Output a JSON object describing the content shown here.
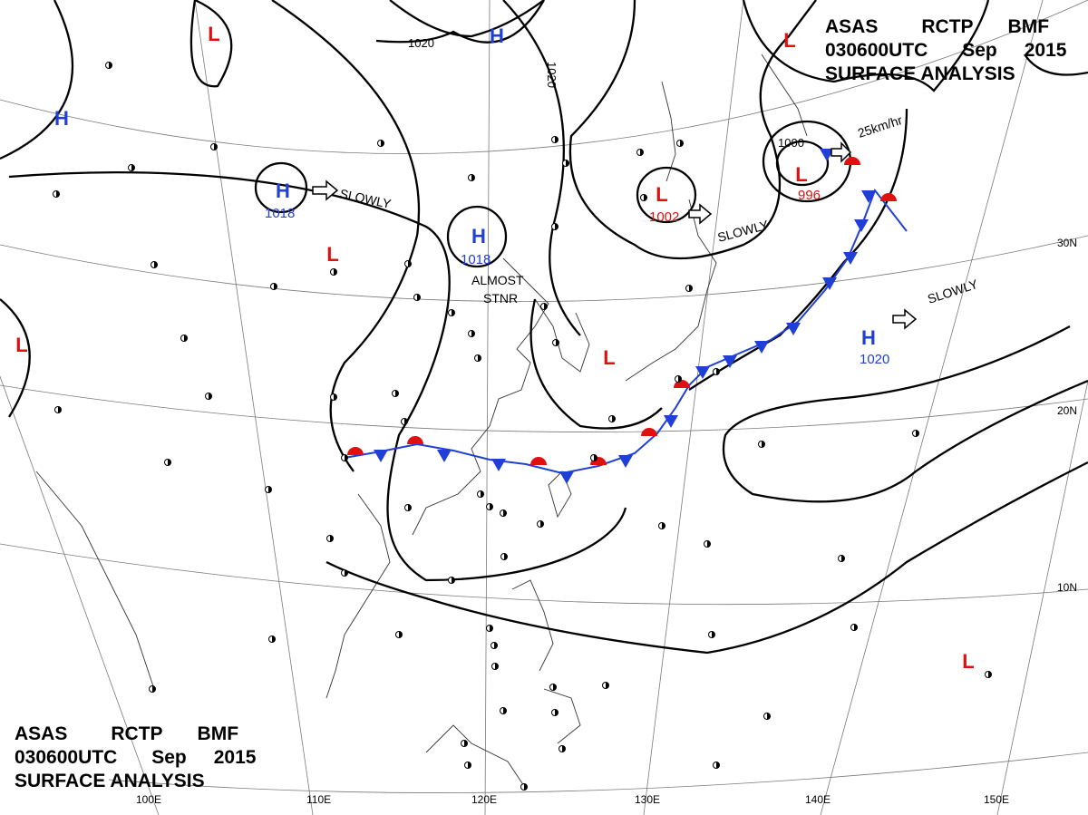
{
  "header": {
    "agency": "ASAS",
    "station": "RCTP",
    "code": "BMF",
    "time": "030600UTC",
    "month": "Sep",
    "year": "2015",
    "title": "SURFACE ANALYSIS"
  },
  "colors": {
    "high": "#1f3fd6",
    "low": "#e01010",
    "warm_front": "#e01010",
    "cold_front": "#1f3fd6",
    "isobar": "#000000",
    "grid": "#777777"
  },
  "longitude_labels": [
    "100E",
    "110E",
    "120E",
    "130E",
    "140E",
    "150E"
  ],
  "latitude_labels": [
    "30N",
    "20N",
    "10N"
  ],
  "isobar_labels": [
    "1020",
    "1020",
    "1000"
  ],
  "pressure_systems": [
    {
      "type": "H",
      "letter": "H",
      "value": ""
    },
    {
      "type": "H",
      "letter": "H",
      "value": "1018"
    },
    {
      "type": "H",
      "letter": "H",
      "value": "1018"
    },
    {
      "type": "H",
      "letter": "H",
      "value": ""
    },
    {
      "type": "H",
      "letter": "H",
      "value": "1020"
    },
    {
      "type": "L",
      "letter": "L",
      "value": ""
    },
    {
      "type": "L",
      "letter": "L",
      "value": ""
    },
    {
      "type": "L",
      "letter": "L",
      "value": ""
    },
    {
      "type": "L",
      "letter": "L",
      "value": "1002"
    },
    {
      "type": "L",
      "letter": "L",
      "value": "996"
    },
    {
      "type": "L",
      "letter": "L",
      "value": ""
    },
    {
      "type": "L",
      "letter": "L",
      "value": ""
    },
    {
      "type": "L",
      "letter": "L",
      "value": ""
    }
  ],
  "movement_labels": [
    "SLOWLY",
    "SLOWLY",
    "SLOWLY",
    "25km/hr"
  ],
  "stationary_label": [
    "ALMOST",
    "STNR"
  ]
}
